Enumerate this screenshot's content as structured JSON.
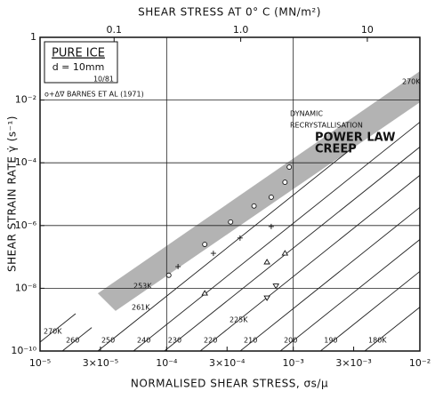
{
  "chart_data": {
    "type": "map",
    "title": "SHEAR STRESS AT 0° C (MN/m²)",
    "xlabel": "NORMALISED SHEAR STRESS, σs/μ",
    "ylabel": "SHEAR STRAIN RATE γ̇ (s⁻¹)",
    "xscale": "log",
    "yscale": "log",
    "grid": true,
    "xlim": [
      1e-05,
      0.01
    ],
    "ylim": [
      1e-10,
      1
    ],
    "x2lim": [
      0.026,
      26
    ],
    "xticks": [
      {
        "value": 1e-05,
        "label": "10⁻⁵"
      },
      {
        "value": 3e-05,
        "label": "3×10⁻⁵"
      },
      {
        "value": 0.0001,
        "label": "10⁻⁴"
      },
      {
        "value": 0.0003,
        "label": "3×10⁻⁴"
      },
      {
        "value": 0.001,
        "label": "10⁻³"
      },
      {
        "value": 0.003,
        "label": "3×10⁻³"
      },
      {
        "value": 0.01,
        "label": "10⁻²"
      }
    ],
    "yticks": [
      {
        "value": 1e-10,
        "label": "10⁻¹⁰"
      },
      {
        "value": 1e-08,
        "label": "10⁻⁸"
      },
      {
        "value": 1e-06,
        "label": "10⁻⁶"
      },
      {
        "value": 0.0001,
        "label": "10⁻⁴"
      },
      {
        "value": 0.01,
        "label": "10⁻²"
      },
      1
    ],
    "x2ticks": [
      0.1,
      {
        "value": 1,
        "label": "1.0"
      },
      10
    ],
    "info_box": [
      "PURE ICE",
      "d = 10mm",
      "10/81"
    ],
    "legend_label": "o+Δ∇ BARNES ET AL (1971)",
    "band": {
      "color": "#9a9a9a",
      "points": [
        [
          2.86e-05,
          6.9e-09
        ],
        [
          0.01,
          0.083
        ],
        [
          0.01,
          0.0085
        ],
        [
          3.95e-05,
          1.9e-09
        ]
      ]
    },
    "regions": [
      {
        "lines": [
          "DYNAMIC",
          "RECRYSTALLISATION"
        ]
      },
      {
        "lines": [
          "POWER LAW",
          "CREEP"
        ]
      }
    ],
    "annotations": [
      "270K",
      "253K",
      "261K",
      "225K"
    ],
    "contours": [
      {
        "label": "270K",
        "points": [
          [
            1e-05,
            1.92e-10
          ],
          [
            1.91e-05,
            1.55e-09
          ]
        ]
      },
      {
        "label": "260",
        "points": [
          [
            1.5e-05,
            1e-10
          ],
          [
            2.56e-05,
            5.6e-10
          ]
        ]
      },
      {
        "label": "250",
        "points": [
          [
            2.86e-05,
            1e-10
          ],
          [
            0.00284,
            0.00027
          ]
        ]
      },
      {
        "label": "240",
        "points": [
          [
            5.47e-05,
            1e-10
          ],
          [
            0.01,
            0.00198
          ]
        ]
      },
      {
        "label": "230",
        "points": [
          [
            9.6e-05,
            1e-10
          ],
          [
            0.01,
            0.00032
          ]
        ]
      },
      {
        "label": "220",
        "points": [
          [
            0.000184,
            1e-10
          ],
          [
            0.01,
            4e-05
          ]
        ]
      },
      {
        "label": "210",
        "points": [
          [
            0.000381,
            1e-10
          ],
          [
            0.01,
            3.8e-06
          ]
        ]
      },
      {
        "label": "200",
        "points": [
          [
            0.00079,
            1e-10
          ],
          [
            0.01,
            3.6e-07
          ]
        ]
      },
      {
        "label": "190",
        "points": [
          [
            0.00164,
            1e-10
          ],
          [
            0.01,
            3.45e-08
          ]
        ]
      },
      {
        "label": "180K",
        "points": [
          [
            0.00367,
            1e-10
          ],
          [
            0.01,
            2.5e-09
          ]
        ]
      }
    ],
    "series": [
      {
        "marker": "circle",
        "x": [
          0.000104,
          0.0002,
          0.00032,
          0.00049,
          0.00067,
          0.00086,
          0.00093
        ],
        "values": [
          2.6e-08,
          2.5e-07,
          1.3e-06,
          4.2e-06,
          8e-06,
          2.4e-05,
          7.3e-05
        ]
      },
      {
        "marker": "plus",
        "x": [
          0.000123,
          0.000234,
          0.00038,
          0.00067
        ],
        "values": [
          4.9e-08,
          1.3e-07,
          4e-07,
          9.3e-07
        ]
      },
      {
        "marker": "triangle",
        "x": [
          0.0002,
          0.00062,
          0.00086
        ],
        "values": [
          6.9e-09,
          6.8e-08,
          1.3e-07
        ]
      },
      {
        "marker": "triangle-down",
        "x": [
          0.00062,
          0.00073
        ],
        "values": [
          5e-09,
          1.2e-08
        ]
      }
    ]
  }
}
